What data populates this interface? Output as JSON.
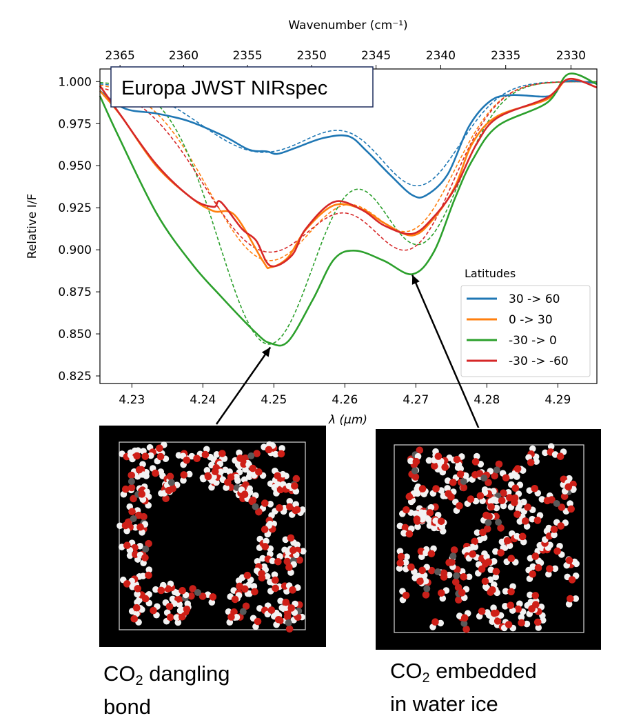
{
  "chart_data": {
    "type": "line",
    "title": "Europa JWST NIRspec",
    "xlabel": "λ (μm)",
    "ylabel": "Relative I/F",
    "top_axis_label": "Wavenumber (cm⁻¹)",
    "xlim": [
      4.2255,
      4.2955
    ],
    "ylim": [
      0.8205,
      1.0075
    ],
    "xticks": [
      "4.23",
      "4.24",
      "4.25",
      "4.26",
      "4.27",
      "4.28",
      "4.29"
    ],
    "yticks": [
      "0.825",
      "0.850",
      "0.875",
      "0.900",
      "0.925",
      "0.950",
      "0.975",
      "1.000"
    ],
    "top_ticks": [
      "2365",
      "2360",
      "2355",
      "2350",
      "2345",
      "2340",
      "2335",
      "2330"
    ],
    "grid": false,
    "legend": {
      "title": "Latitudes",
      "placement": "lower-right",
      "entries": [
        "30 -> 60",
        "0 -> 30",
        "-30 -> 0",
        "-30 -> -60"
      ]
    },
    "colors": [
      "#1f77b4",
      "#ff7f0e",
      "#2ca02c",
      "#d62728"
    ],
    "series": [
      {
        "name": "30 -> 60",
        "x": [
          4.2255,
          4.229,
          4.2335,
          4.238,
          4.243,
          4.2465,
          4.249,
          4.2505,
          4.253,
          4.257,
          4.2605,
          4.263,
          4.2665,
          4.2695,
          4.2715,
          4.2745,
          4.2775,
          4.2805,
          4.2835,
          4.289,
          4.291,
          4.2955
        ],
        "y": [
          0.9945,
          0.984,
          0.981,
          0.9765,
          0.9675,
          0.9595,
          0.9585,
          0.957,
          0.9605,
          0.9665,
          0.9675,
          0.959,
          0.944,
          0.9325,
          0.9325,
          0.945,
          0.9735,
          0.9885,
          0.992,
          0.9915,
          1.0,
          0.999
        ]
      },
      {
        "name": "0 -> 30",
        "x": [
          4.2255,
          4.2285,
          4.2335,
          4.2385,
          4.2415,
          4.2445,
          4.2485,
          4.2495,
          4.252,
          4.2545,
          4.2585,
          4.2625,
          4.2655,
          4.2695,
          4.2725,
          4.2755,
          4.278,
          4.2815,
          4.2885,
          4.2915,
          4.2955
        ],
        "y": [
          0.9945,
          0.9795,
          0.9495,
          0.9305,
          0.923,
          0.9205,
          0.893,
          0.8895,
          0.8955,
          0.912,
          0.9265,
          0.924,
          0.916,
          0.9085,
          0.9185,
          0.9375,
          0.9635,
          0.9795,
          0.9895,
          1.0015,
          0.9965
        ]
      },
      {
        "name": "-30 -> 0",
        "x": [
          4.2255,
          4.228,
          4.2335,
          4.2385,
          4.2425,
          4.2475,
          4.2495,
          4.252,
          4.2555,
          4.2585,
          4.2615,
          4.2655,
          4.2695,
          4.2725,
          4.2755,
          4.278,
          4.2815,
          4.2885,
          4.2915,
          4.2955
        ],
        "y": [
          0.9915,
          0.9685,
          0.9215,
          0.8915,
          0.8725,
          0.8505,
          0.8445,
          0.8455,
          0.8705,
          0.8945,
          0.8995,
          0.8935,
          0.8855,
          0.8985,
          0.9305,
          0.9535,
          0.9735,
          0.9875,
          1.0045,
          0.9985
        ]
      },
      {
        "name": "-30 -> -60",
        "x": [
          4.2255,
          4.2285,
          4.2335,
          4.2385,
          4.2415,
          4.2425,
          4.2455,
          4.2475,
          4.2495,
          4.2525,
          4.2545,
          4.2585,
          4.2625,
          4.2655,
          4.2695,
          4.2725,
          4.2755,
          4.2785,
          4.2815,
          4.2885,
          4.2915,
          4.2955
        ],
        "y": [
          0.9975,
          0.9795,
          0.9505,
          0.9305,
          0.9255,
          0.9285,
          0.9125,
          0.9055,
          0.8905,
          0.8965,
          0.9125,
          0.9285,
          0.9235,
          0.9145,
          0.9095,
          0.9195,
          0.9365,
          0.9625,
          0.9785,
          0.9905,
          1.0015,
          0.9965
        ]
      }
    ],
    "fits": [
      {
        "series": "30 -> 60",
        "depths": [
          0.042,
          0.06
        ],
        "centers": [
          4.2485,
          4.2705
        ],
        "widths": [
          0.0088,
          0.0058
        ]
      },
      {
        "series": "0 -> 30",
        "depths": [
          0.106,
          0.082
        ],
        "centers": [
          4.2493,
          4.2695
        ],
        "widths": [
          0.0085,
          0.0062
        ]
      },
      {
        "series": "-30 -> 0",
        "depths": [
          0.156,
          0.095
        ],
        "centers": [
          4.2493,
          4.2705
        ],
        "widths": [
          0.0071,
          0.0058
        ]
      },
      {
        "series": "-30 -> -60",
        "depths": [
          0.101,
          0.09
        ],
        "centers": [
          4.2493,
          4.2695
        ],
        "widths": [
          0.0092,
          0.0061
        ]
      }
    ],
    "annotations": [
      {
        "points_to": {
          "x": 4.2495,
          "y": 0.8445
        }
      },
      {
        "points_to": {
          "x": 4.2695,
          "y": 0.8875
        }
      }
    ]
  },
  "panels": [
    {
      "caption_main": "CO",
      "caption_sub": "2",
      "caption_rest": " dangling",
      "caption_line2": "bond",
      "style": "cavity"
    },
    {
      "caption_main": "CO",
      "caption_sub": "2",
      "caption_rest": " embedded",
      "caption_line2": "in water ice",
      "style": "embedded"
    }
  ]
}
